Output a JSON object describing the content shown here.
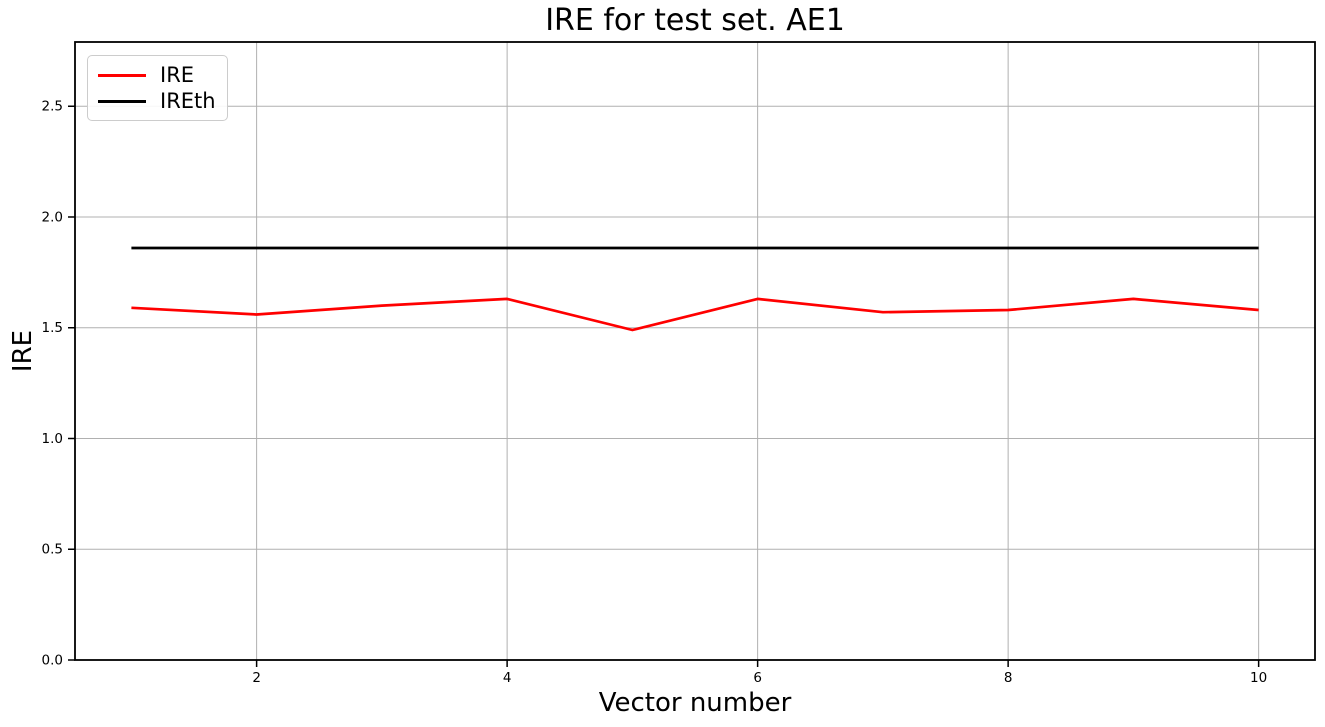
{
  "figure": {
    "background": "#ffffff"
  },
  "chart_data": {
    "type": "line",
    "title": "IRE for test set. AE1",
    "xlabel": "Vector number",
    "ylabel": "IRE",
    "x": [
      1,
      2,
      3,
      4,
      5,
      6,
      7,
      8,
      9,
      10
    ],
    "series": [
      {
        "name": "IRE",
        "color": "#ff0000",
        "values": [
          1.59,
          1.56,
          1.6,
          1.63,
          1.49,
          1.63,
          1.57,
          1.58,
          1.63,
          1.58
        ]
      },
      {
        "name": "IREth",
        "color": "#000000",
        "values": [
          1.86,
          1.86,
          1.86,
          1.86,
          1.86,
          1.86,
          1.86,
          1.86,
          1.86,
          1.86
        ]
      }
    ],
    "xlim": [
      0.55,
      10.45
    ],
    "ylim": [
      0,
      2.79
    ],
    "xticks": [
      2,
      4,
      6,
      8,
      10
    ],
    "xtick_labels": [
      "2",
      "4",
      "6",
      "8",
      "10"
    ],
    "yticks": [
      0,
      0.5,
      1,
      1.5,
      2,
      2.5
    ],
    "ytick_labels": [
      "0.0",
      "0.5",
      "1.0",
      "1.5",
      "2.0",
      "2.5"
    ],
    "grid": true,
    "grid_color": "#b0b0b0",
    "axis_color": "#000000",
    "tick_label_color": "#000000",
    "legend": {
      "position": "upper-left",
      "entries": [
        {
          "label": "IRE",
          "color": "#ff0000"
        },
        {
          "label": "IREth",
          "color": "#000000"
        }
      ]
    }
  }
}
